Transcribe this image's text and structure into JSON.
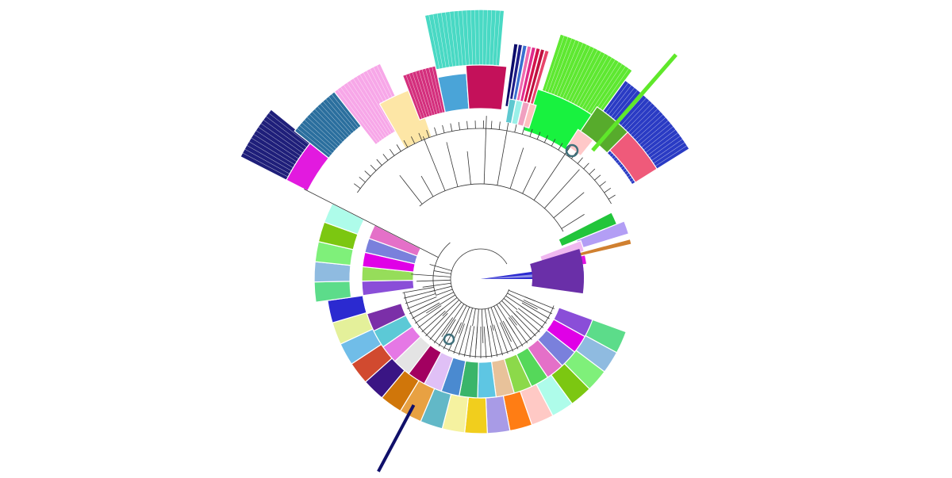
{
  "diagram": {
    "type": "circular-phylogenetic-tree",
    "description_visible_text": "",
    "inner_wedges": [
      {
        "id": "w1",
        "color": "#1f1f7a",
        "pattern": "bars"
      },
      {
        "id": "w2",
        "color": "#2b6f9e",
        "pattern": "bars"
      },
      {
        "id": "w3",
        "color": "#e21adf",
        "pattern": "solid"
      },
      {
        "id": "w4",
        "color": "#f7a7e8",
        "pattern": "bars"
      },
      {
        "id": "w5",
        "color": "#fde6a6",
        "pattern": "solid"
      },
      {
        "id": "w6",
        "color": "#d42f7d",
        "pattern": "bars"
      },
      {
        "id": "w7",
        "color": "#4aa4d8",
        "pattern": "solid"
      },
      {
        "id": "w8",
        "color": "#49d9c4",
        "pattern": "bars"
      },
      {
        "id": "w9",
        "color": "#c4115a",
        "pattern": "solid"
      },
      {
        "id": "w10",
        "color": "#5ee831",
        "pattern": "bars"
      },
      {
        "id": "w11",
        "color": "#18f23f",
        "pattern": "solid"
      },
      {
        "id": "w12",
        "color": "#2a3bc4",
        "pattern": "bars"
      },
      {
        "id": "w13",
        "color": "#57ab2c",
        "pattern": "solid"
      },
      {
        "id": "w14",
        "color": "#ef5a7a",
        "pattern": "solid"
      },
      {
        "id": "w15",
        "color": "#ffc8c8",
        "pattern": "solid"
      }
    ],
    "outer_ring": [
      "#5cdc8a",
      "#8fbbe0",
      "#7ff07a",
      "#7cc711",
      "#aefcea",
      "#ffc9c5",
      "#ff7d14",
      "#a89be6",
      "#f1ce1d",
      "#f5f2a0",
      "#62b8c7",
      "#e8a142",
      "#d0760a",
      "#3a1584",
      "#d14a2f",
      "#70bde8",
      "#e4f09a",
      "#2b2ad0"
    ],
    "middle_ring": [
      "#8a4ed8",
      "#e000e7",
      "#7a80dc",
      "#e470c8",
      "#55d85a",
      "#8cd94a",
      "#e8c29a",
      "#5ec6e3",
      "#3ab56a",
      "#4a8ad0",
      "#e0c0f6",
      "#a20060",
      "#e4e4e4",
      "#e578e5",
      "#5cc9d6",
      "#7b2fa8",
      "#ffffff"
    ],
    "highlights": [
      {
        "id": "h1",
        "color": "#5fe82a",
        "label": ""
      },
      {
        "id": "h2",
        "color": "#10106a",
        "label": ""
      }
    ],
    "center_fan": {
      "color_dark": "#2b2ad0",
      "color_light": "#8f92e8",
      "band": "#6a2fa8"
    },
    "circle_markers": [
      "#3f6f7a",
      "#3f6f7a"
    ]
  }
}
